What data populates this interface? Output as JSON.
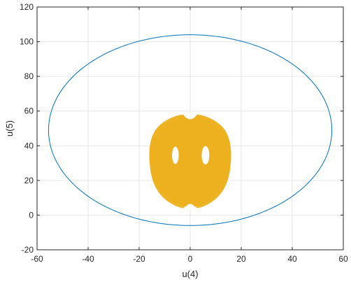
{
  "chart_data": {
    "type": "line",
    "title": "",
    "xlabel": "u(4)",
    "ylabel": "u(5)",
    "xlim": [
      -60,
      60
    ],
    "ylim": [
      -20,
      120
    ],
    "xticks": [
      -60,
      -40,
      -20,
      0,
      20,
      40,
      60
    ],
    "yticks": [
      -20,
      0,
      20,
      40,
      60,
      80,
      100,
      120
    ],
    "xtick_labels": [
      "-60",
      "-40",
      "-20",
      "0",
      "20",
      "40",
      "60"
    ],
    "ytick_labels": [
      "-20",
      "0",
      "20",
      "40",
      "60",
      "80",
      "100",
      "120"
    ],
    "grid": true,
    "box": true,
    "series": [
      {
        "kind": "limit-cycle-ellipse",
        "color": "#0072BD",
        "center": [
          0,
          49
        ],
        "x_range": [
          -55.5,
          55.5
        ],
        "y_range": [
          -6,
          104
        ]
      },
      {
        "kind": "chaotic-attractor",
        "color": "#EDB120",
        "x_range": [
          -16,
          16
        ],
        "y_range": [
          4,
          58
        ],
        "lobe_centers": [
          [
            -6,
            35
          ],
          [
            6,
            35
          ]
        ],
        "holes": [
          {
            "center": [
              -5.8,
              34.5
            ],
            "half_widths": [
              1.3,
              5.0
            ]
          },
          {
            "center": [
              6.0,
              34.5
            ],
            "half_widths": [
              1.5,
              5.3
            ]
          }
        ]
      }
    ]
  }
}
